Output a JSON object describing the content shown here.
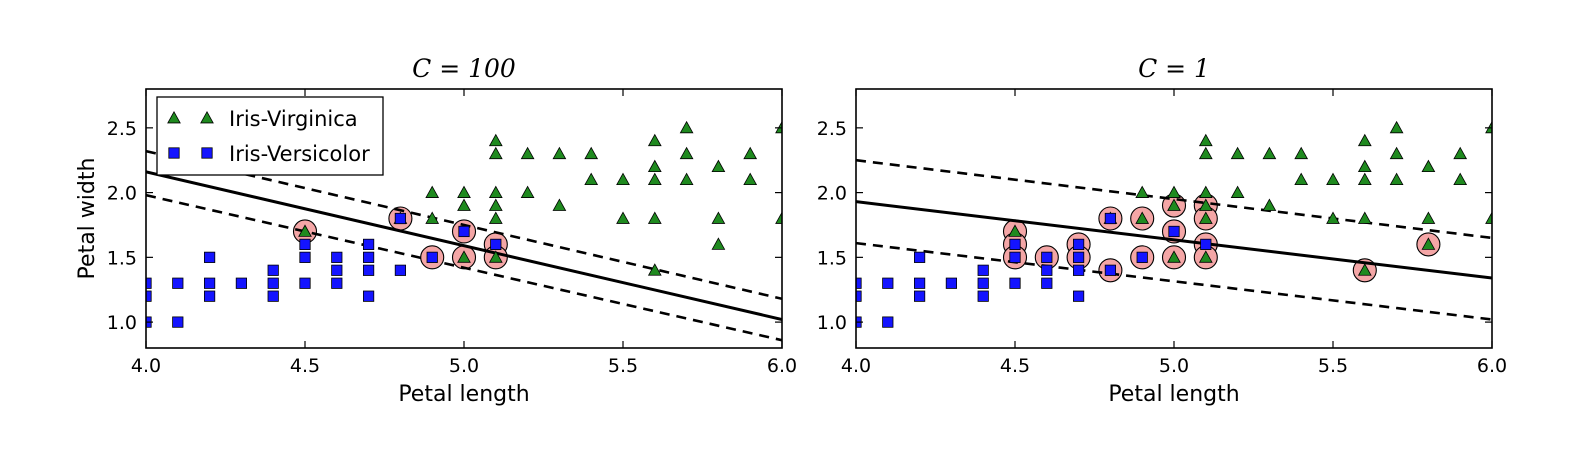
{
  "colors": {
    "virginica": "#1f8a1f",
    "versicolor": "#1414ff",
    "support_vector_fill": "#f4a6a6",
    "boundary": "#000000"
  },
  "chart_data": [
    {
      "type": "scatter",
      "title": "C = 100",
      "xlabel": "Petal length",
      "ylabel": "Petal width",
      "xlim": [
        4.0,
        6.0
      ],
      "ylim": [
        0.8,
        2.8
      ],
      "xticks": [
        "4.0",
        "4.5",
        "5.0",
        "5.5",
        "6.0"
      ],
      "yticks": [
        "1.0",
        "1.5",
        "2.0",
        "2.5"
      ],
      "grid": false,
      "legend": {
        "placement": "top-left",
        "entries": [
          {
            "label": "Iris-Virginica",
            "series": "virginica",
            "marker": "triangle"
          },
          {
            "label": "Iris-Versicolor",
            "series": "versicolor",
            "marker": "square"
          }
        ]
      },
      "series": [
        {
          "name": "Iris-Virginica",
          "key": "virginica",
          "marker": "triangle",
          "points": [
            [
              4.5,
              1.7
            ],
            [
              4.8,
              1.8
            ],
            [
              4.9,
              1.8
            ],
            [
              4.9,
              2.0
            ],
            [
              5.0,
              2.0
            ],
            [
              5.0,
              1.9
            ],
            [
              5.0,
              1.5
            ],
            [
              5.1,
              2.4
            ],
            [
              5.1,
              2.3
            ],
            [
              5.1,
              2.0
            ],
            [
              5.1,
              1.9
            ],
            [
              5.1,
              1.8
            ],
            [
              5.1,
              1.5
            ],
            [
              5.2,
              2.3
            ],
            [
              5.2,
              2.0
            ],
            [
              5.3,
              2.3
            ],
            [
              5.3,
              1.9
            ],
            [
              5.4,
              2.3
            ],
            [
              5.4,
              2.1
            ],
            [
              5.5,
              2.1
            ],
            [
              5.5,
              1.8
            ],
            [
              5.6,
              2.4
            ],
            [
              5.6,
              2.2
            ],
            [
              5.6,
              2.1
            ],
            [
              5.6,
              1.8
            ],
            [
              5.6,
              1.4
            ],
            [
              5.7,
              2.5
            ],
            [
              5.7,
              2.3
            ],
            [
              5.7,
              2.1
            ],
            [
              5.8,
              2.2
            ],
            [
              5.8,
              1.8
            ],
            [
              5.8,
              1.6
            ],
            [
              5.9,
              2.3
            ],
            [
              5.9,
              2.1
            ],
            [
              6.0,
              2.5
            ],
            [
              6.0,
              1.8
            ]
          ]
        },
        {
          "name": "Iris-Versicolor",
          "key": "versicolor",
          "marker": "square",
          "points": [
            [
              4.0,
              1.3
            ],
            [
              4.0,
              1.2
            ],
            [
              4.0,
              1.0
            ],
            [
              4.1,
              1.3
            ],
            [
              4.1,
              1.0
            ],
            [
              4.2,
              1.5
            ],
            [
              4.2,
              1.3
            ],
            [
              4.2,
              1.2
            ],
            [
              4.3,
              1.3
            ],
            [
              4.4,
              1.4
            ],
            [
              4.4,
              1.3
            ],
            [
              4.4,
              1.2
            ],
            [
              4.5,
              1.6
            ],
            [
              4.5,
              1.5
            ],
            [
              4.5,
              1.3
            ],
            [
              4.6,
              1.5
            ],
            [
              4.6,
              1.4
            ],
            [
              4.6,
              1.3
            ],
            [
              4.7,
              1.6
            ],
            [
              4.7,
              1.5
            ],
            [
              4.7,
              1.4
            ],
            [
              4.7,
              1.2
            ],
            [
              4.8,
              1.8
            ],
            [
              4.8,
              1.4
            ],
            [
              4.9,
              1.5
            ],
            [
              5.0,
              1.7
            ],
            [
              5.1,
              1.6
            ]
          ]
        }
      ],
      "support_vectors": [
        [
          4.5,
          1.7
        ],
        [
          4.8,
          1.8
        ],
        [
          4.9,
          1.5
        ],
        [
          5.0,
          1.7
        ],
        [
          5.0,
          1.5
        ],
        [
          5.1,
          1.6
        ],
        [
          5.1,
          1.5
        ]
      ],
      "decision_boundary": {
        "x": [
          4.0,
          6.0
        ],
        "y": [
          2.16,
          1.02
        ]
      },
      "margin_upper": {
        "x": [
          4.0,
          6.0
        ],
        "y": [
          2.32,
          1.18
        ]
      },
      "margin_lower": {
        "x": [
          4.0,
          6.0
        ],
        "y": [
          1.98,
          0.86
        ]
      }
    },
    {
      "type": "scatter",
      "title": "C = 1",
      "xlabel": "Petal length",
      "ylabel": "",
      "xlim": [
        4.0,
        6.0
      ],
      "ylim": [
        0.8,
        2.8
      ],
      "xticks": [
        "4.0",
        "4.5",
        "5.0",
        "5.5",
        "6.0"
      ],
      "yticks": [
        "1.0",
        "1.5",
        "2.0",
        "2.5"
      ],
      "grid": false,
      "legend": null,
      "series": [
        {
          "name": "Iris-Virginica",
          "key": "virginica",
          "marker": "triangle",
          "points": [
            [
              4.5,
              1.7
            ],
            [
              4.8,
              1.8
            ],
            [
              4.9,
              1.8
            ],
            [
              4.9,
              2.0
            ],
            [
              5.0,
              2.0
            ],
            [
              5.0,
              1.9
            ],
            [
              5.0,
              1.5
            ],
            [
              5.1,
              2.4
            ],
            [
              5.1,
              2.3
            ],
            [
              5.1,
              2.0
            ],
            [
              5.1,
              1.9
            ],
            [
              5.1,
              1.8
            ],
            [
              5.1,
              1.5
            ],
            [
              5.2,
              2.3
            ],
            [
              5.2,
              2.0
            ],
            [
              5.3,
              2.3
            ],
            [
              5.3,
              1.9
            ],
            [
              5.4,
              2.3
            ],
            [
              5.4,
              2.1
            ],
            [
              5.5,
              2.1
            ],
            [
              5.5,
              1.8
            ],
            [
              5.6,
              2.4
            ],
            [
              5.6,
              2.2
            ],
            [
              5.6,
              2.1
            ],
            [
              5.6,
              1.8
            ],
            [
              5.6,
              1.4
            ],
            [
              5.7,
              2.5
            ],
            [
              5.7,
              2.3
            ],
            [
              5.7,
              2.1
            ],
            [
              5.8,
              2.2
            ],
            [
              5.8,
              1.8
            ],
            [
              5.8,
              1.6
            ],
            [
              5.9,
              2.3
            ],
            [
              5.9,
              2.1
            ],
            [
              6.0,
              2.5
            ],
            [
              6.0,
              1.8
            ]
          ]
        },
        {
          "name": "Iris-Versicolor",
          "key": "versicolor",
          "marker": "square",
          "points": [
            [
              4.0,
              1.3
            ],
            [
              4.0,
              1.2
            ],
            [
              4.0,
              1.0
            ],
            [
              4.1,
              1.3
            ],
            [
              4.1,
              1.0
            ],
            [
              4.2,
              1.5
            ],
            [
              4.2,
              1.3
            ],
            [
              4.2,
              1.2
            ],
            [
              4.3,
              1.3
            ],
            [
              4.4,
              1.4
            ],
            [
              4.4,
              1.3
            ],
            [
              4.4,
              1.2
            ],
            [
              4.5,
              1.6
            ],
            [
              4.5,
              1.5
            ],
            [
              4.5,
              1.3
            ],
            [
              4.6,
              1.5
            ],
            [
              4.6,
              1.4
            ],
            [
              4.6,
              1.3
            ],
            [
              4.7,
              1.6
            ],
            [
              4.7,
              1.5
            ],
            [
              4.7,
              1.4
            ],
            [
              4.7,
              1.2
            ],
            [
              4.8,
              1.8
            ],
            [
              4.8,
              1.4
            ],
            [
              4.9,
              1.5
            ],
            [
              5.0,
              1.7
            ],
            [
              5.1,
              1.6
            ]
          ]
        }
      ],
      "support_vectors": [
        [
          4.5,
          1.7
        ],
        [
          4.5,
          1.6
        ],
        [
          4.5,
          1.5
        ],
        [
          4.6,
          1.5
        ],
        [
          4.7,
          1.6
        ],
        [
          4.7,
          1.5
        ],
        [
          4.8,
          1.8
        ],
        [
          4.8,
          1.4
        ],
        [
          4.9,
          1.8
        ],
        [
          4.9,
          1.5
        ],
        [
          5.0,
          1.9
        ],
        [
          5.0,
          1.7
        ],
        [
          5.0,
          1.5
        ],
        [
          5.1,
          1.9
        ],
        [
          5.1,
          1.8
        ],
        [
          5.1,
          1.6
        ],
        [
          5.1,
          1.5
        ],
        [
          5.6,
          1.4
        ],
        [
          5.8,
          1.6
        ]
      ],
      "decision_boundary": {
        "x": [
          4.0,
          6.0
        ],
        "y": [
          1.93,
          1.34
        ]
      },
      "margin_upper": {
        "x": [
          4.0,
          6.0
        ],
        "y": [
          2.25,
          1.65
        ]
      },
      "margin_lower": {
        "x": [
          4.0,
          6.0
        ],
        "y": [
          1.61,
          1.02
        ]
      }
    }
  ]
}
